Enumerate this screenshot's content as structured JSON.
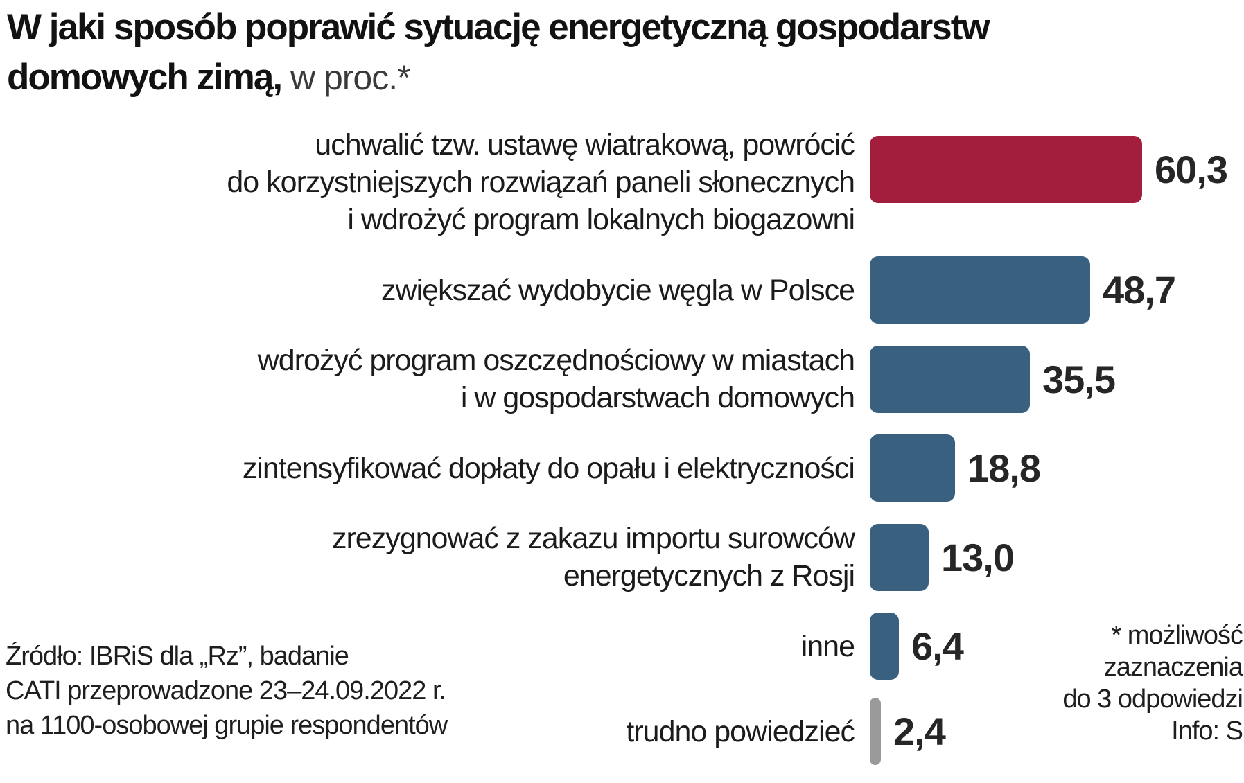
{
  "title": {
    "line1": "W jaki sposób poprawić sytuację energetyczną gospodarstw",
    "line2_bold": "domowych zimą,",
    "line2_light": " w proc.*"
  },
  "chart_data": {
    "type": "bar",
    "orientation": "horizontal",
    "title": "W jaki sposób poprawić sytuację energetyczną gospodarstw domowych zimą,",
    "subtitle": "w proc.*",
    "unit": "proc. (%)",
    "grid": false,
    "legend": false,
    "xlim": [
      0,
      62
    ],
    "categories": [
      "uchwalić tzw. ustawę wiatrakową, powrócić do korzystniejszych rozwiązań paneli słonecznych i wdrożyć program lokalnych biogazowni",
      "zwiększać wydobycie węgla w Polsce",
      "wdrożyć program oszczędnościowy w miastach i w gospodarstwach domowych",
      "zintensyfikować dopłaty do opału i elektryczności",
      "zrezygnować z zakazu importu surowców energetycznych z Rosji",
      "inne",
      "trudno powiedzieć"
    ],
    "values": [
      60.3,
      48.7,
      35.5,
      18.8,
      13.0,
      6.4,
      2.4
    ],
    "value_labels": [
      "60,3",
      "48,7",
      "35,5",
      "18,8",
      "13,0",
      "6,4",
      "2,4"
    ],
    "bar_colors": [
      "#A31E3C",
      "#3A6080",
      "#3A6080",
      "#3A6080",
      "#3A6080",
      "#3A6080",
      "#9A9A9A"
    ]
  },
  "colors": {
    "highlight_red": "#A31E3C",
    "primary_blue": "#3A6080",
    "neutral_gray": "#9A9A9A"
  },
  "bars": [
    {
      "label": "uchwalić tzw. ustawę wiatrakową, powrócić\ndo korzystniejszych rozwiązań paneli słonecznych\ni wdrożyć program lokalnych biogazowni",
      "value": 60.3,
      "value_label": "60,3",
      "color": "#A31E3C",
      "thin": false
    },
    {
      "label": "zwiększać wydobycie węgla w Polsce",
      "value": 48.7,
      "value_label": "48,7",
      "color": "#3A6080",
      "thin": false
    },
    {
      "label": "wdrożyć program oszczędnościowy w miastach\ni w gospodarstwach domowych",
      "value": 35.5,
      "value_label": "35,5",
      "color": "#3A6080",
      "thin": false
    },
    {
      "label": "zintensyfikować dopłaty do opału i elektryczności",
      "value": 18.8,
      "value_label": "18,8",
      "color": "#3A6080",
      "thin": false
    },
    {
      "label": "zrezygnować z zakazu importu surowców\nenergetycznych z Rosji",
      "value": 13.0,
      "value_label": "13,0",
      "color": "#3A6080",
      "thin": false
    },
    {
      "label": "inne",
      "value": 6.4,
      "value_label": "6,4",
      "color": "#3A6080",
      "thin": false
    },
    {
      "label": "trudno powiedzieć",
      "value": 2.4,
      "value_label": "2,4",
      "color": "#9A9A9A",
      "thin": true
    }
  ],
  "source": {
    "line1": "Źródło: IBRiS dla „Rz”, badanie",
    "line2": "CATI przeprowadzone 23–24.09.2022 r.",
    "line3": "na 1100-osobowej grupie respondentów"
  },
  "footnote": {
    "line1": "* możliwość",
    "line2": "zaznaczenia",
    "line3": "do 3 odpowiedzi",
    "line4": "Info: S"
  }
}
